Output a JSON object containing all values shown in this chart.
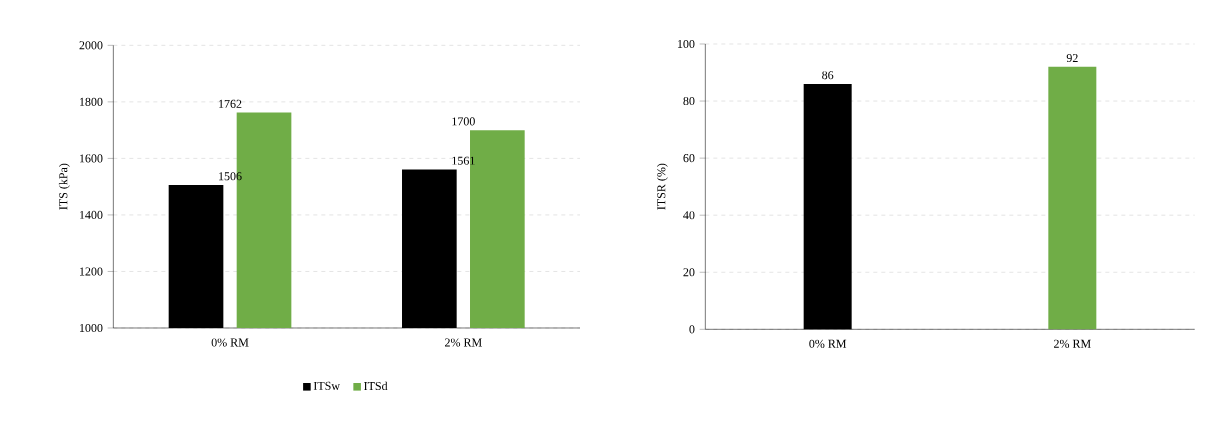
{
  "chart_data": [
    {
      "type": "bar",
      "ylabel": "ITS (kPa)",
      "categories": [
        "0% RM",
        "2% RM"
      ],
      "series": [
        {
          "name": "ITSw",
          "color": "#000000",
          "values": [
            1506,
            1561
          ]
        },
        {
          "name": "ITSd",
          "color": "#70ad47",
          "values": [
            1762,
            1700
          ]
        }
      ],
      "ylim": [
        1000,
        2000
      ],
      "yticks": [
        1000,
        1200,
        1400,
        1600,
        1800,
        2000
      ],
      "grid": "y",
      "legend": "bottom",
      "data_labels": true
    },
    {
      "type": "bar",
      "ylabel": "ITSR (%)",
      "categories": [
        "0% RM",
        "2% RM"
      ],
      "values": [
        86,
        92
      ],
      "colors": [
        "#000000",
        "#70ad47"
      ],
      "ylim": [
        0,
        100
      ],
      "yticks": [
        0,
        20,
        40,
        60,
        80,
        100
      ],
      "grid": "y",
      "data_labels": true
    }
  ]
}
